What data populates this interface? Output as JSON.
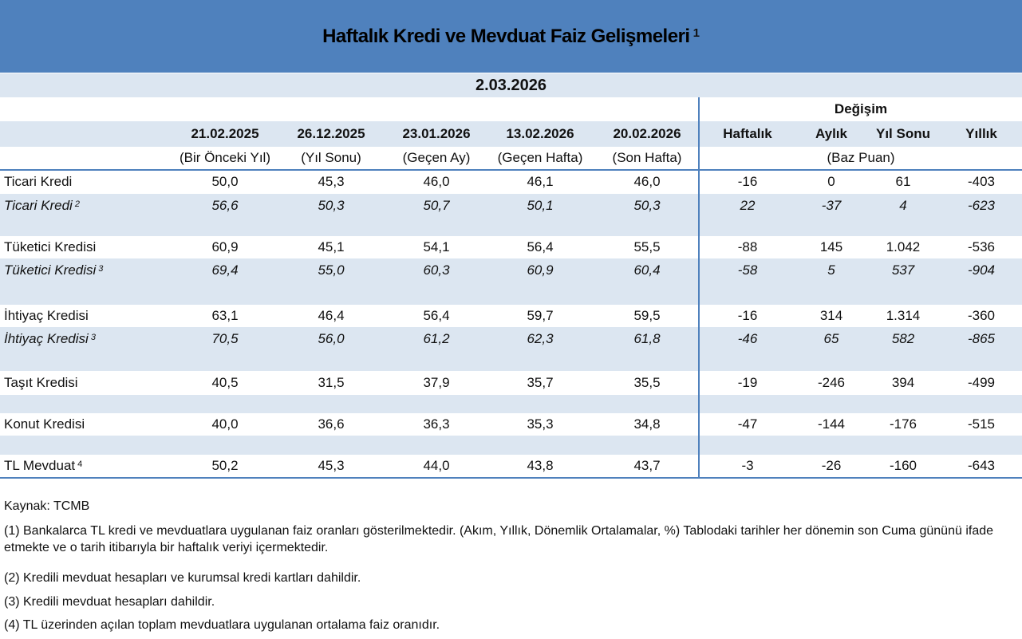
{
  "title": "Haftalık Kredi ve Mevduat Faiz Gelişmeleri",
  "title_footnote": "1",
  "date": "2.03.2026",
  "change_header": "Değişim",
  "columns": [
    {
      "date": "21.02.2025",
      "sub": "(Bir Önceki Yıl)"
    },
    {
      "date": "26.12.2025",
      "sub": "(Yıl Sonu)"
    },
    {
      "date": "23.01.2026",
      "sub": "(Geçen Ay)"
    },
    {
      "date": "13.02.2026",
      "sub": "(Geçen Hafta)"
    },
    {
      "date": "20.02.2026",
      "sub": "(Son Hafta)"
    }
  ],
  "change_columns": [
    "Haftalık",
    "Aylık",
    "Yıl Sonu",
    "Yıllık"
  ],
  "change_unit": "(Baz Puan)",
  "rows": [
    {
      "label": "Ticari Kredi",
      "fn": "",
      "values": [
        "50,0",
        "45,3",
        "46,0",
        "46,1",
        "46,0"
      ],
      "changes": [
        "-16",
        "0",
        "61",
        "-403"
      ]
    },
    {
      "label": "Ticari Kredi",
      "fn": "2",
      "values": [
        "56,6",
        "50,3",
        "50,7",
        "50,1",
        "50,3"
      ],
      "changes": [
        "22",
        "-37",
        "4",
        "-623"
      ]
    },
    {
      "label": "Tüketici Kredisi",
      "fn": "",
      "values": [
        "60,9",
        "45,1",
        "54,1",
        "56,4",
        "55,5"
      ],
      "changes": [
        "-88",
        "145",
        "1.042",
        "-536"
      ]
    },
    {
      "label": "Tüketici Kredisi",
      "fn": "3",
      "values": [
        "69,4",
        "55,0",
        "60,3",
        "60,9",
        "60,4"
      ],
      "changes": [
        "-58",
        "5",
        "537",
        "-904"
      ]
    },
    {
      "label": "İhtiyaç Kredisi",
      "fn": "",
      "values": [
        "63,1",
        "46,4",
        "56,4",
        "59,7",
        "59,5"
      ],
      "changes": [
        "-16",
        "314",
        "1.314",
        "-360"
      ]
    },
    {
      "label": "İhtiyaç Kredisi",
      "fn": "3",
      "values": [
        "70,5",
        "56,0",
        "61,2",
        "62,3",
        "61,8"
      ],
      "changes": [
        "-46",
        "65",
        "582",
        "-865"
      ]
    },
    {
      "label": "Taşıt Kredisi",
      "fn": "",
      "values": [
        "40,5",
        "31,5",
        "37,9",
        "35,7",
        "35,5"
      ],
      "changes": [
        "-19",
        "-246",
        "394",
        "-499"
      ]
    },
    {
      "label": "Konut Kredisi",
      "fn": "",
      "values": [
        "40,0",
        "36,6",
        "36,3",
        "35,3",
        "34,8"
      ],
      "changes": [
        "-47",
        "-144",
        "-176",
        "-515"
      ]
    },
    {
      "label": "TL Mevduat",
      "fn": "4",
      "values": [
        "50,2",
        "45,3",
        "44,0",
        "43,8",
        "43,7"
      ],
      "changes": [
        "-3",
        "-26",
        "-160",
        "-643"
      ]
    }
  ],
  "notes": {
    "source": "Kaynak: TCMB",
    "n1": "(1) Bankalarca TL kredi ve mevduatlara uygulanan faiz oranları gösterilmektedir. (Akım, Yıllık, Dönemlik Ortalamalar, %) Tablodaki tarihler her dönemin son Cuma gününü ifade etmekte  ve o tarih itibarıyla bir haftalık veriyi içermektedir.",
    "n2": "(2) Kredili mevduat hesapları ve kurumsal kredi kartları dahildir.",
    "n3": "(3) Kredili mevduat hesapları dahildir.",
    "n4": "(4) TL üzerinden açılan toplam mevduatlara uygulanan ortalama faiz oranıdır."
  },
  "colors": {
    "header": "#4f81bd",
    "band": "#dce6f1"
  }
}
